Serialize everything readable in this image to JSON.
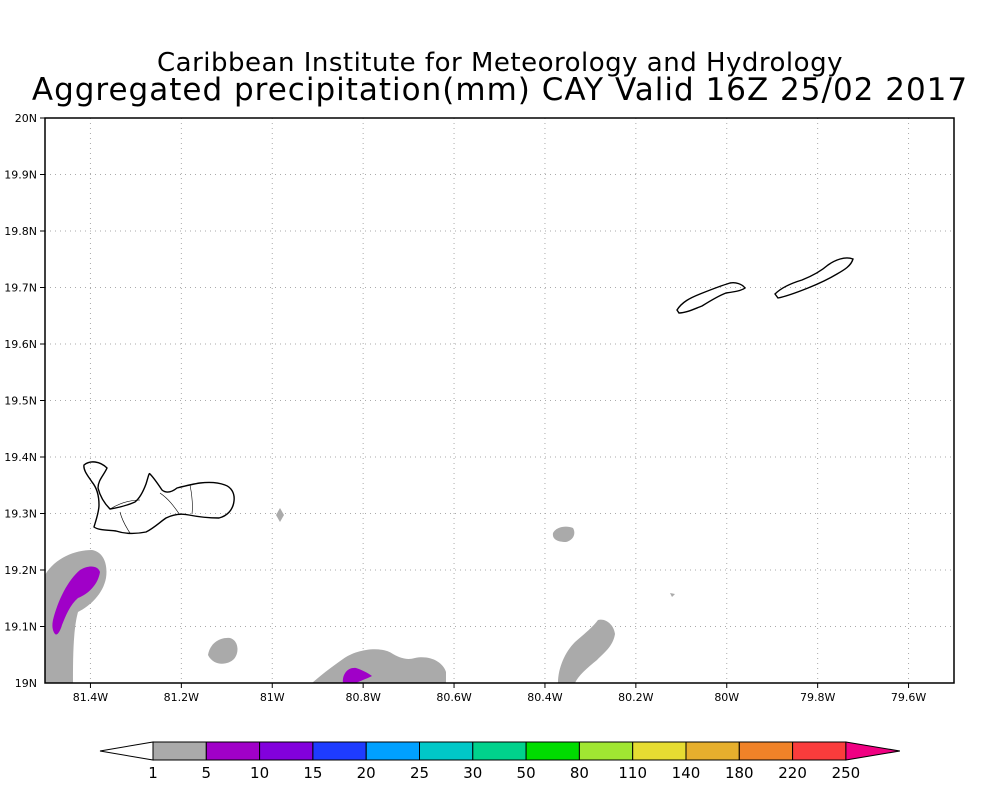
{
  "title_line1": "Caribbean Institute for Meteorology and Hydrology",
  "title_line2": "Aggregated precipitation(mm) CAY Valid 16Z 25/02 2017",
  "map": {
    "lon_range": [
      -81.5,
      -79.5
    ],
    "lat_range": [
      19.0,
      20.0
    ],
    "grid": true,
    "lon_ticks": [
      {
        "value": -81.4,
        "label": "81.4W"
      },
      {
        "value": -81.2,
        "label": "81.2W"
      },
      {
        "value": -81.0,
        "label": "81W"
      },
      {
        "value": -80.8,
        "label": "80.8W"
      },
      {
        "value": -80.6,
        "label": "80.6W"
      },
      {
        "value": -80.4,
        "label": "80.4W"
      },
      {
        "value": -80.2,
        "label": "80.2W"
      },
      {
        "value": -80.0,
        "label": "80W"
      },
      {
        "value": -79.8,
        "label": "79.8W"
      },
      {
        "value": -79.6,
        "label": "79.6W"
      }
    ],
    "lat_ticks": [
      {
        "value": 20.0,
        "label": "20N"
      },
      {
        "value": 19.9,
        "label": "19.9N"
      },
      {
        "value": 19.8,
        "label": "19.8N"
      },
      {
        "value": 19.7,
        "label": "19.7N"
      },
      {
        "value": 19.6,
        "label": "19.6N"
      },
      {
        "value": 19.5,
        "label": "19.5N"
      },
      {
        "value": 19.4,
        "label": "19.4N"
      },
      {
        "value": 19.3,
        "label": "19.3N"
      },
      {
        "value": 19.2,
        "label": "19.2N"
      },
      {
        "value": 19.1,
        "label": "19.1N"
      }
    ],
    "corner_label": "19N"
  },
  "colorbar": {
    "labels": [
      "1",
      "5",
      "10",
      "15",
      "20",
      "25",
      "30",
      "50",
      "80",
      "110",
      "140",
      "180",
      "220",
      "250"
    ],
    "colors": [
      "#aaaaaa",
      "#a000c8",
      "#8200dc",
      "#1e3cff",
      "#00a0ff",
      "#00c8c8",
      "#00d28c",
      "#00dc00",
      "#a0e632",
      "#e6dc32",
      "#e6af2d",
      "#f08228",
      "#fa3c3c",
      "#f00082"
    ],
    "under_color": "#ffffff",
    "over_color": "#f00082"
  },
  "colors": {
    "gray_rain": "#aaaaaa",
    "purple_rain": "#a000c8",
    "grid": "#aaaaaa"
  }
}
